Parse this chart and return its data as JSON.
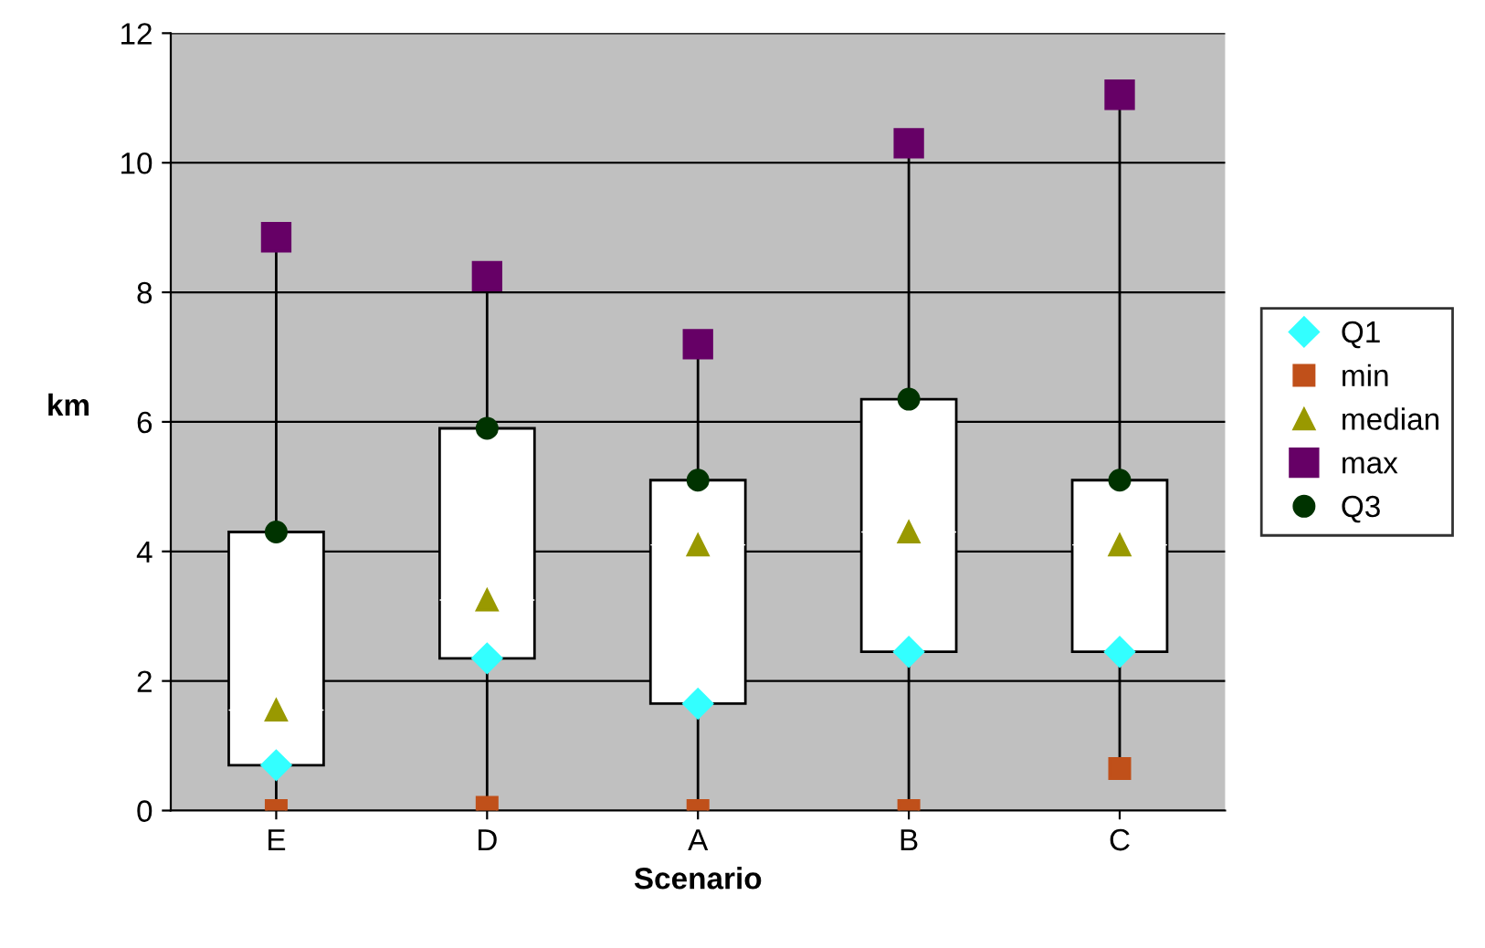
{
  "chart_data": {
    "type": "box",
    "xlabel": "Scenario",
    "ylabel": "km",
    "categories": [
      "E",
      "D",
      "A",
      "B",
      "C"
    ],
    "boxes": [
      {
        "low": 0,
        "q1": 0.7,
        "median": 1.55,
        "q3": 4.3,
        "high": 8.85
      },
      {
        "low": 0.05,
        "q1": 2.35,
        "median": 3.25,
        "q3": 5.9,
        "high": 8.25
      },
      {
        "low": 0,
        "q1": 1.65,
        "median": 4.1,
        "q3": 5.1,
        "high": 7.2
      },
      {
        "low": 0,
        "q1": 2.45,
        "median": 4.3,
        "q3": 6.35,
        "high": 10.3
      },
      {
        "low": 0.65,
        "q1": 2.45,
        "median": 4.1,
        "q3": 5.1,
        "high": 11.05
      }
    ],
    "series": [
      {
        "name": "Q1",
        "type": "scatter",
        "marker": "diamond",
        "color": "#33ffff",
        "x": [
          "E",
          "D",
          "A",
          "B",
          "C"
        ],
        "values": [
          0.7,
          2.35,
          1.65,
          2.45,
          2.45
        ]
      },
      {
        "name": "min",
        "type": "scatter",
        "marker": "square",
        "color": "#c0501a",
        "x": [
          "E",
          "D",
          "A",
          "B",
          "C"
        ],
        "values": [
          0,
          0.05,
          0,
          0,
          0.65
        ]
      },
      {
        "name": "median",
        "type": "scatter",
        "marker": "triangle",
        "color": "#999900",
        "x": [
          "E",
          "D",
          "A",
          "B",
          "C"
        ],
        "values": [
          1.55,
          3.25,
          4.1,
          4.3,
          4.1
        ]
      },
      {
        "name": "max",
        "type": "scatter",
        "marker": "square",
        "color": "#660066",
        "x": [
          "E",
          "D",
          "A",
          "B",
          "C"
        ],
        "values": [
          8.85,
          8.25,
          7.2,
          10.3,
          11.05
        ]
      },
      {
        "name": "Q3",
        "type": "scatter",
        "marker": "circle",
        "color": "#003300",
        "x": [
          "E",
          "D",
          "A",
          "B",
          "C"
        ],
        "values": [
          4.3,
          5.9,
          5.1,
          6.35,
          5.1
        ]
      }
    ],
    "ylim": [
      0,
      12
    ],
    "yticks": [
      0,
      2,
      4,
      6,
      8,
      10,
      12
    ],
    "grid": "y",
    "legend": "right"
  }
}
